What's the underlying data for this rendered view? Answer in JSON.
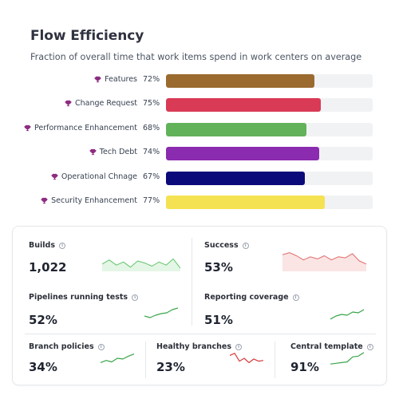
{
  "header": {
    "title": "Flow Efficiency",
    "subtitle": "Fraction of overall time that work items spend in work centers on average"
  },
  "chart_data": {
    "type": "bar",
    "orientation": "horizontal",
    "categories": [
      "Features",
      "Change Request",
      "Performance Enhancement",
      "Tech Debt",
      "Operational Chnage",
      "Security Enhancement"
    ],
    "values": [
      72,
      75,
      68,
      74,
      67,
      77
    ],
    "value_labels": [
      "72%",
      "75%",
      "68%",
      "74%",
      "67%",
      "77%"
    ],
    "colors": [
      "#9b6a2f",
      "#d93a55",
      "#62b25a",
      "#8a2bb0",
      "#0a0a7a",
      "#f5e252"
    ],
    "xlim": [
      0,
      100
    ],
    "icon": "trophy-icon"
  },
  "metrics": [
    {
      "id": "builds",
      "label": "Builds",
      "value": "1,022",
      "trend": "area",
      "color": "#63c46b",
      "fill": "#e4f6e6",
      "points": [
        0.35,
        0.55,
        0.3,
        0.45,
        0.2,
        0.5,
        0.4,
        0.25,
        0.45,
        0.3,
        0.6,
        0.15
      ]
    },
    {
      "id": "success",
      "label": "Success",
      "value": "53%",
      "trend": "area",
      "color": "#e06a6a",
      "fill": "#fbe4e4",
      "points": [
        0.8,
        0.9,
        0.75,
        0.55,
        0.7,
        0.6,
        0.75,
        0.55,
        0.7,
        0.65,
        0.85,
        0.5,
        0.35
      ]
    },
    {
      "id": "pipelines",
      "label": "Pipelines running tests",
      "value": "52%",
      "trend": "line",
      "color": "#3aa54a",
      "points": [
        0.3,
        0.2,
        0.35,
        0.45,
        0.5,
        0.7,
        0.8
      ]
    },
    {
      "id": "reporting",
      "label": "Reporting coverage",
      "value": "51%",
      "trend": "line",
      "color": "#3aa54a",
      "points": [
        0.1,
        0.3,
        0.4,
        0.35,
        0.55,
        0.5,
        0.7
      ]
    },
    {
      "id": "branch",
      "label": "Branch policies",
      "value": "34%",
      "trend": "line",
      "color": "#3aa54a",
      "points": [
        0.2,
        0.35,
        0.25,
        0.5,
        0.45,
        0.65,
        0.8
      ]
    },
    {
      "id": "healthy",
      "label": "Healthy branches",
      "value": "23%",
      "trend": "line",
      "color": "#d93a3a",
      "points": [
        0.7,
        0.85,
        0.3,
        0.5,
        0.2,
        0.45,
        0.3,
        0.35
      ]
    },
    {
      "id": "central",
      "label": "Central template",
      "value": "91%",
      "trend": "line",
      "color": "#3aa54a",
      "points": [
        0.1,
        0.15,
        0.2,
        0.25,
        0.6,
        0.65,
        0.9
      ]
    }
  ]
}
